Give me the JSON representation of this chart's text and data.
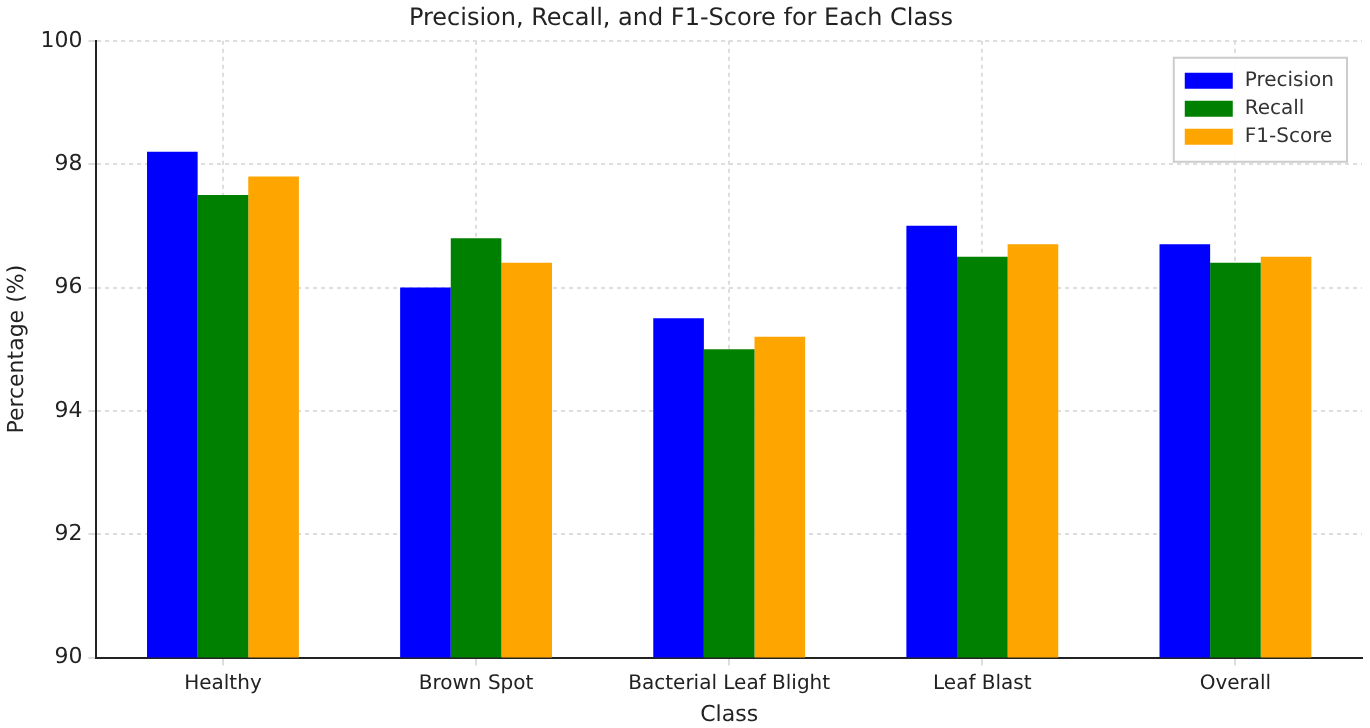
{
  "chart_data": {
    "type": "bar",
    "title": "Precision, Recall, and F1-Score for Each Class",
    "xlabel": "Class",
    "ylabel": "Percentage (%)",
    "categories": [
      "Healthy",
      "Brown Spot",
      "Bacterial Leaf Blight",
      "Leaf Blast",
      "Overall"
    ],
    "series": [
      {
        "name": "Precision",
        "color": "#0000ff",
        "values": [
          98.2,
          96.0,
          95.5,
          97.0,
          96.7
        ]
      },
      {
        "name": "Recall",
        "color": "#008000",
        "values": [
          97.5,
          96.8,
          95.0,
          96.5,
          96.4
        ]
      },
      {
        "name": "F1-Score",
        "color": "#ffa500",
        "values": [
          97.8,
          96.4,
          95.2,
          96.7,
          96.5
        ]
      }
    ],
    "ylim": [
      90,
      100
    ],
    "yticks": [
      90,
      92,
      94,
      96,
      98,
      100
    ],
    "grid": true,
    "legend": "top right"
  }
}
